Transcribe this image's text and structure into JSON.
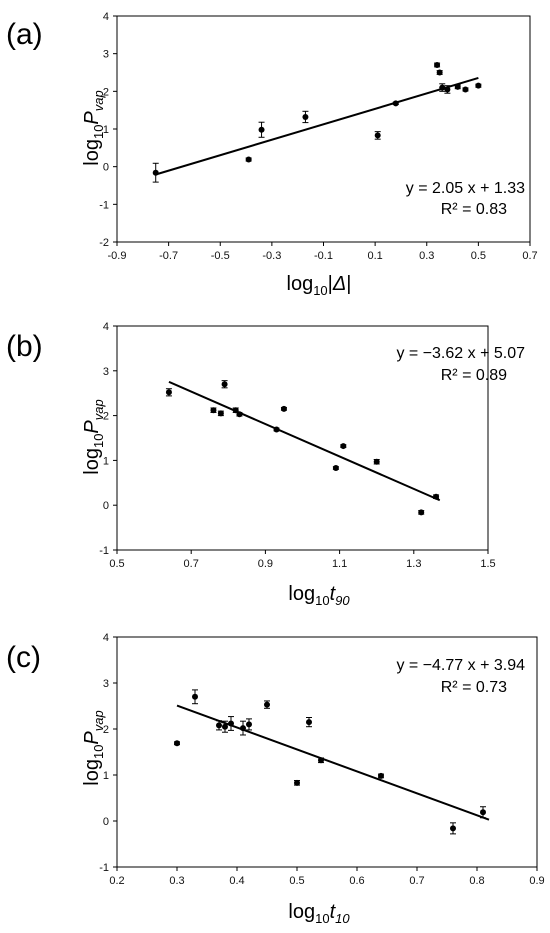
{
  "chart_data": [
    {
      "type": "scatter",
      "panel_label": "(a)",
      "ylabel": {
        "base": "log",
        "sub": "10",
        "var": "P",
        "var_sub": "vap"
      },
      "xlabel": {
        "base": "log",
        "sub": "10",
        "var_prefix": "|",
        "var": "Δ",
        "var_suffix": "|"
      },
      "xlim": [
        -0.9,
        0.7
      ],
      "ylim": [
        -2,
        4
      ],
      "xticks": [
        "-0.9",
        "-0.7",
        "-0.5",
        "-0.3",
        "-0.1",
        "0.1",
        "0.3",
        "0.5",
        "0.7"
      ],
      "yticks": [
        "-2",
        "-1",
        "0",
        "1",
        "2",
        "3",
        "4"
      ],
      "fit": {
        "slope": 2.05,
        "intercept": 1.33,
        "x_range": [
          -0.75,
          0.5
        ]
      },
      "equation": "y = 2.05 x + 1.33",
      "r2": "R² = 0.83",
      "legend": "bottom-right",
      "points": [
        {
          "x": -0.75,
          "y": -0.16,
          "err": 0.25
        },
        {
          "x": -0.39,
          "y": 0.19,
          "err": 0.04
        },
        {
          "x": -0.34,
          "y": 0.98,
          "err": 0.2
        },
        {
          "x": -0.17,
          "y": 1.32,
          "err": 0.15
        },
        {
          "x": 0.11,
          "y": 0.83,
          "err": 0.1
        },
        {
          "x": 0.18,
          "y": 1.68,
          "err": 0.03
        },
        {
          "x": 0.34,
          "y": 2.7,
          "err": 0.05
        },
        {
          "x": 0.35,
          "y": 2.5,
          "err": 0.05
        },
        {
          "x": 0.36,
          "y": 2.1,
          "err": 0.1
        },
        {
          "x": 0.38,
          "y": 2.05,
          "err": 0.1
        },
        {
          "x": 0.42,
          "y": 2.12,
          "err": 0.05
        },
        {
          "x": 0.45,
          "y": 2.05,
          "err": 0.04
        },
        {
          "x": 0.5,
          "y": 2.15,
          "err": 0.04
        }
      ]
    },
    {
      "type": "scatter",
      "panel_label": "(b)",
      "ylabel": {
        "base": "log",
        "sub": "10",
        "var": "P",
        "var_sub": "vap"
      },
      "xlabel": {
        "base": "log",
        "sub": "10",
        "var": "t",
        "var_sub": "90"
      },
      "xlim": [
        0.5,
        1.5
      ],
      "ylim": [
        -1,
        4
      ],
      "xticks": [
        "0.5",
        "0.7",
        "0.9",
        "1.1",
        "1.3",
        "1.5"
      ],
      "yticks": [
        "-1",
        "0",
        "1",
        "2",
        "3",
        "4"
      ],
      "fit": {
        "slope": -3.62,
        "intercept": 5.07,
        "x_range": [
          0.64,
          1.37
        ]
      },
      "equation": "y = −3.62 x + 5.07",
      "r2": "R² = 0.89",
      "legend": "top-right",
      "points": [
        {
          "x": 0.64,
          "y": 2.52,
          "err": 0.08
        },
        {
          "x": 0.76,
          "y": 2.12,
          "err": 0.05
        },
        {
          "x": 0.78,
          "y": 2.05,
          "err": 0.05
        },
        {
          "x": 0.79,
          "y": 2.7,
          "err": 0.08
        },
        {
          "x": 0.82,
          "y": 2.12,
          "err": 0.05
        },
        {
          "x": 0.83,
          "y": 2.03,
          "err": 0.04
        },
        {
          "x": 0.93,
          "y": 1.69,
          "err": 0.03
        },
        {
          "x": 0.95,
          "y": 2.15,
          "err": 0.03
        },
        {
          "x": 1.09,
          "y": 0.83,
          "err": 0.03
        },
        {
          "x": 1.11,
          "y": 1.32,
          "err": 0.03
        },
        {
          "x": 1.2,
          "y": 0.97,
          "err": 0.05
        },
        {
          "x": 1.32,
          "y": -0.16,
          "err": 0.04
        },
        {
          "x": 1.36,
          "y": 0.19,
          "err": 0.04
        }
      ]
    },
    {
      "type": "scatter",
      "panel_label": "(c)",
      "ylabel": {
        "base": "log",
        "sub": "10",
        "var": "P",
        "var_sub": "vap"
      },
      "xlabel": {
        "base": "log",
        "sub": "10",
        "var": "t",
        "var_sub": "10"
      },
      "xlim": [
        0.2,
        0.9
      ],
      "ylim": [
        -1,
        4
      ],
      "xticks": [
        "0.2",
        "0.3",
        "0.4",
        "0.5",
        "0.6",
        "0.7",
        "0.8",
        "0.9"
      ],
      "yticks": [
        "-1",
        "0",
        "1",
        "2",
        "3",
        "4"
      ],
      "fit": {
        "slope": -4.77,
        "intercept": 3.94,
        "x_range": [
          0.3,
          0.82
        ]
      },
      "equation": "y = −4.77 x + 3.94",
      "r2": "R² = 0.73",
      "legend": "top-right",
      "points": [
        {
          "x": 0.3,
          "y": 1.69,
          "err": 0.03
        },
        {
          "x": 0.33,
          "y": 2.7,
          "err": 0.15
        },
        {
          "x": 0.37,
          "y": 2.08,
          "err": 0.1
        },
        {
          "x": 0.38,
          "y": 2.05,
          "err": 0.12
        },
        {
          "x": 0.39,
          "y": 2.12,
          "err": 0.15
        },
        {
          "x": 0.41,
          "y": 2.02,
          "err": 0.15
        },
        {
          "x": 0.42,
          "y": 2.1,
          "err": 0.12
        },
        {
          "x": 0.45,
          "y": 2.53,
          "err": 0.08
        },
        {
          "x": 0.5,
          "y": 0.83,
          "err": 0.05
        },
        {
          "x": 0.52,
          "y": 2.15,
          "err": 0.1
        },
        {
          "x": 0.54,
          "y": 1.32,
          "err": 0.05
        },
        {
          "x": 0.64,
          "y": 0.98,
          "err": 0.04
        },
        {
          "x": 0.76,
          "y": -0.16,
          "err": 0.12
        },
        {
          "x": 0.81,
          "y": 0.19,
          "err": 0.12
        }
      ]
    }
  ]
}
